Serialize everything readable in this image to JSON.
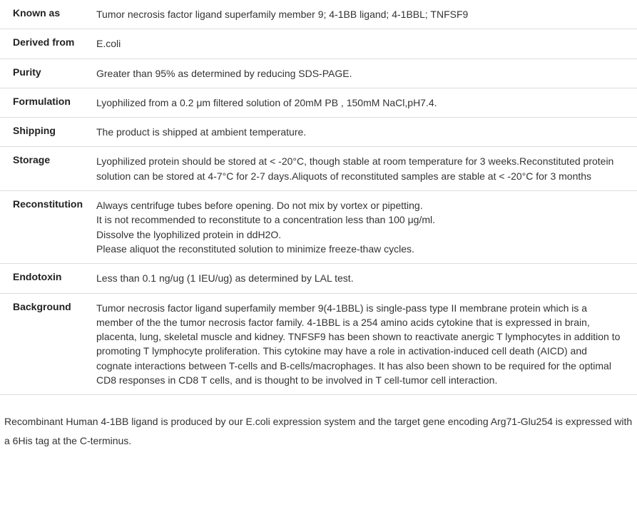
{
  "rows": [
    {
      "label": "Known as",
      "value": "Tumor necrosis factor ligand superfamily member 9; 4-1BB ligand; 4-1BBL; TNFSF9"
    },
    {
      "label": "Derived from",
      "value": "E.coli"
    },
    {
      "label": "Purity",
      "value": "Greater than 95% as determined by reducing SDS-PAGE."
    },
    {
      "label": "Formulation",
      "value": "Lyophilized from a 0.2 μm filtered solution of 20mM PB , 150mM NaCl,pH7.4."
    },
    {
      "label": "Shipping",
      "value": "The product is shipped at ambient temperature."
    },
    {
      "label": "Storage",
      "value": "Lyophilized protein should be stored at < -20°C, though stable at room temperature for 3 weeks.Reconstituted protein solution can be stored at 4-7°C for 2-7 days.Aliquots of reconstituted samples are stable at < -20°C for 3 months"
    },
    {
      "label": "Reconstitution",
      "value": "Always centrifuge tubes before opening. Do not mix by vortex or pipetting.\nIt is not recommended to reconstitute to a concentration less than 100 μg/ml.\nDissolve the lyophilized protein in ddH2O.\nPlease aliquot the reconstituted solution to minimize freeze-thaw cycles."
    },
    {
      "label": "Endotoxin",
      "value": "Less than 0.1 ng/ug (1 IEU/ug) as determined by LAL test."
    },
    {
      "label": "Background",
      "value": "Tumor necrosis factor ligand superfamily member 9(4-1BBL) is single-pass type II membrane protein which is a member of the the tumor necrosis factor family. 4-1BBL is a 254 amino acids cytokine that is expressed in brain, placenta, lung, skeletal muscle and kidney. TNFSF9 has been shown to reactivate anergic T lymphocytes in addition to promoting T lymphocyte proliferation. This cytokine may have a role in activation-induced cell death (AICD) and cognate interactions between T-cells and B-cells/macrophages. It has also been shown to be required for the optimal CD8 responses in CD8 T cells, and is thought to be involved in T cell-tumor cell interaction."
    }
  ],
  "footer": "Recombinant Human 4-1BB ligand is produced by our E.coli expression system and the target gene encoding Arg71-Glu254 is expressed with a 6His tag at the C-terminus."
}
